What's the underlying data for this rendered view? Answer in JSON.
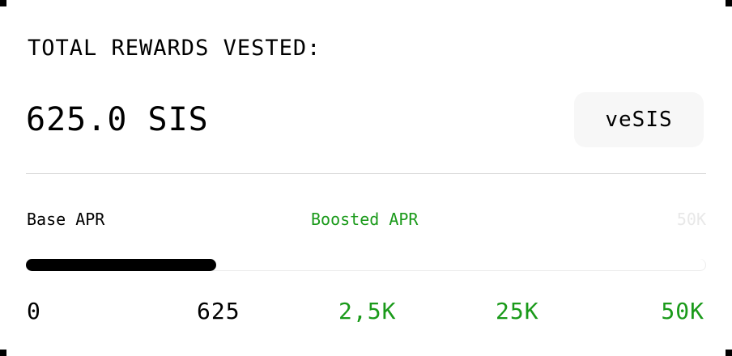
{
  "rewards": {
    "title": "TOTAL REWARDS VESTED:",
    "amount": "625.0 SIS",
    "token_button": "veSIS"
  },
  "apr": {
    "base_label": "Base APR",
    "boosted_label": "Boosted APR",
    "max_label": "50K"
  },
  "progress": {
    "current": 625,
    "max": 50000,
    "fill_fraction": 0.28,
    "ticks": [
      {
        "label": "0",
        "tone": "black"
      },
      {
        "label": "625",
        "tone": "black"
      },
      {
        "label": "2,5K",
        "tone": "green"
      },
      {
        "label": "25K",
        "tone": "green"
      },
      {
        "label": "50K",
        "tone": "green"
      }
    ]
  },
  "colors": {
    "accent_green": "#1a9a1a",
    "fill": "#000000",
    "button_bg": "#f7f7f7",
    "divider": "#dcdcdc"
  }
}
